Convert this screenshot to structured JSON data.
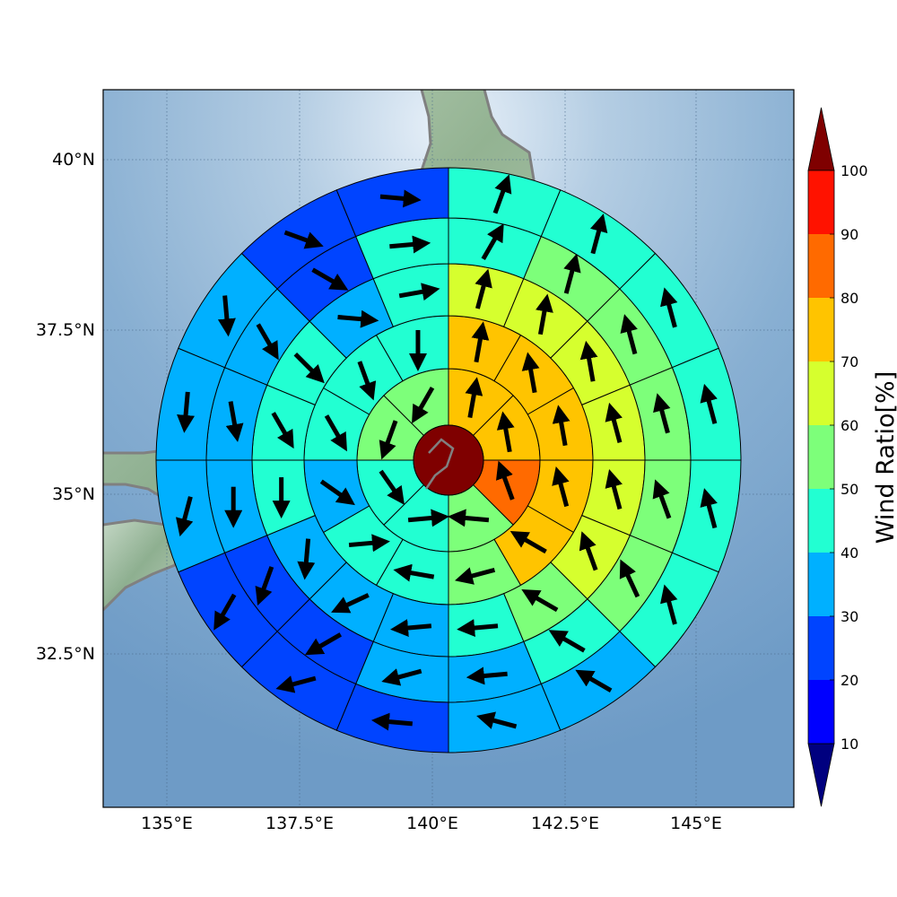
{
  "map": {
    "lon_range": [
      133.8,
      146.8
    ],
    "lat_range": [
      30.1,
      41.0
    ],
    "center": {
      "lon": 140.3,
      "lat": 35.2
    },
    "projection": "lambert-azimuthal-equal-area",
    "background": "shaded-relief",
    "coastline_color": "#808080",
    "grid": true
  },
  "axes": {
    "x_ticks": [
      {
        "value": 135,
        "label": "135°E"
      },
      {
        "value": 137.5,
        "label": "137.5°E"
      },
      {
        "value": 140,
        "label": "140°E"
      },
      {
        "value": 142.5,
        "label": "142.5°E"
      },
      {
        "value": 145,
        "label": "145°E"
      }
    ],
    "y_ticks": [
      {
        "value": 40,
        "label": "40°N"
      },
      {
        "value": 37.5,
        "label": "37.5°N"
      },
      {
        "value": 35,
        "label": "35°N"
      },
      {
        "value": 32.5,
        "label": "32.5°N"
      }
    ]
  },
  "colorbar": {
    "title": "Wind Ratio[%]",
    "levels": [
      10,
      20,
      30,
      40,
      50,
      60,
      70,
      80,
      90,
      100
    ],
    "level_labels": [
      "10",
      "20",
      "30",
      "40",
      "50",
      "60",
      "70",
      "80",
      "90",
      "100"
    ],
    "colors": [
      "#0000ff",
      "#0044ff",
      "#00b0ff",
      "#22ffd2",
      "#7dff7a",
      "#d6ff2e",
      "#ffc400",
      "#ff6a00",
      "#ff1200"
    ],
    "under_color": "#00007f",
    "over_color": "#7f0000",
    "extend": "both"
  },
  "chart_data": {
    "type": "polar-grid-field",
    "description_units": "Wind Ratio[%]",
    "center_value": 100,
    "rings": [
      {
        "ring": 1,
        "sectors": 8,
        "values": [
          75,
          75,
          85,
          50,
          45,
          45,
          55,
          55
        ],
        "arrow_dirs_deg": [
          10,
          350,
          340,
          275,
          85,
          145,
          200,
          210
        ]
      },
      {
        "ring": 2,
        "sectors": 12,
        "values": [
          75,
          75,
          75,
          75,
          75,
          50,
          45,
          45,
          35,
          45,
          45,
          45
        ],
        "arrow_dirs_deg": [
          10,
          350,
          350,
          345,
          300,
          255,
          280,
          85,
          125,
          150,
          160,
          180
        ]
      },
      {
        "ring": 3,
        "sectors": 16,
        "values": [
          65,
          65,
          65,
          65,
          65,
          65,
          55,
          45,
          35,
          35,
          35,
          45,
          45,
          45,
          35,
          45
        ],
        "arrow_dirs_deg": [
          15,
          10,
          350,
          345,
          345,
          340,
          300,
          265,
          265,
          245,
          185,
          180,
          150,
          135,
          95,
          80
        ],
        "note": "sectors ordered clockwise from north"
      },
      {
        "ring": 4,
        "sectors": 16,
        "values": [
          45,
          55,
          55,
          55,
          55,
          55,
          45,
          35,
          35,
          25,
          25,
          35,
          35,
          35,
          25,
          45
        ],
        "arrow_dirs_deg": [
          30,
          15,
          345,
          345,
          340,
          335,
          300,
          265,
          255,
          240,
          200,
          180,
          170,
          150,
          120,
          85
        ]
      },
      {
        "ring": 5,
        "sectors": 16,
        "values": [
          45,
          45,
          45,
          45,
          45,
          45,
          35,
          35,
          25,
          25,
          25,
          35,
          35,
          35,
          25,
          25
        ],
        "arrow_dirs_deg": [
          20,
          15,
          345,
          345,
          345,
          345,
          300,
          285,
          275,
          255,
          210,
          195,
          185,
          175,
          110,
          95
        ]
      },
      {
        "ring": 6,
        "sectors": 16,
        "values": [
          35,
          45,
          45,
          45,
          45,
          45,
          35,
          35,
          25,
          25,
          25,
          25,
          25,
          15,
          25,
          25
        ],
        "arrow_dirs_deg": [
          80,
          30,
          15,
          345,
          345,
          345,
          300,
          300,
          280,
          280,
          210,
          200,
          180,
          120,
          110,
          95
        ]
      }
    ]
  }
}
